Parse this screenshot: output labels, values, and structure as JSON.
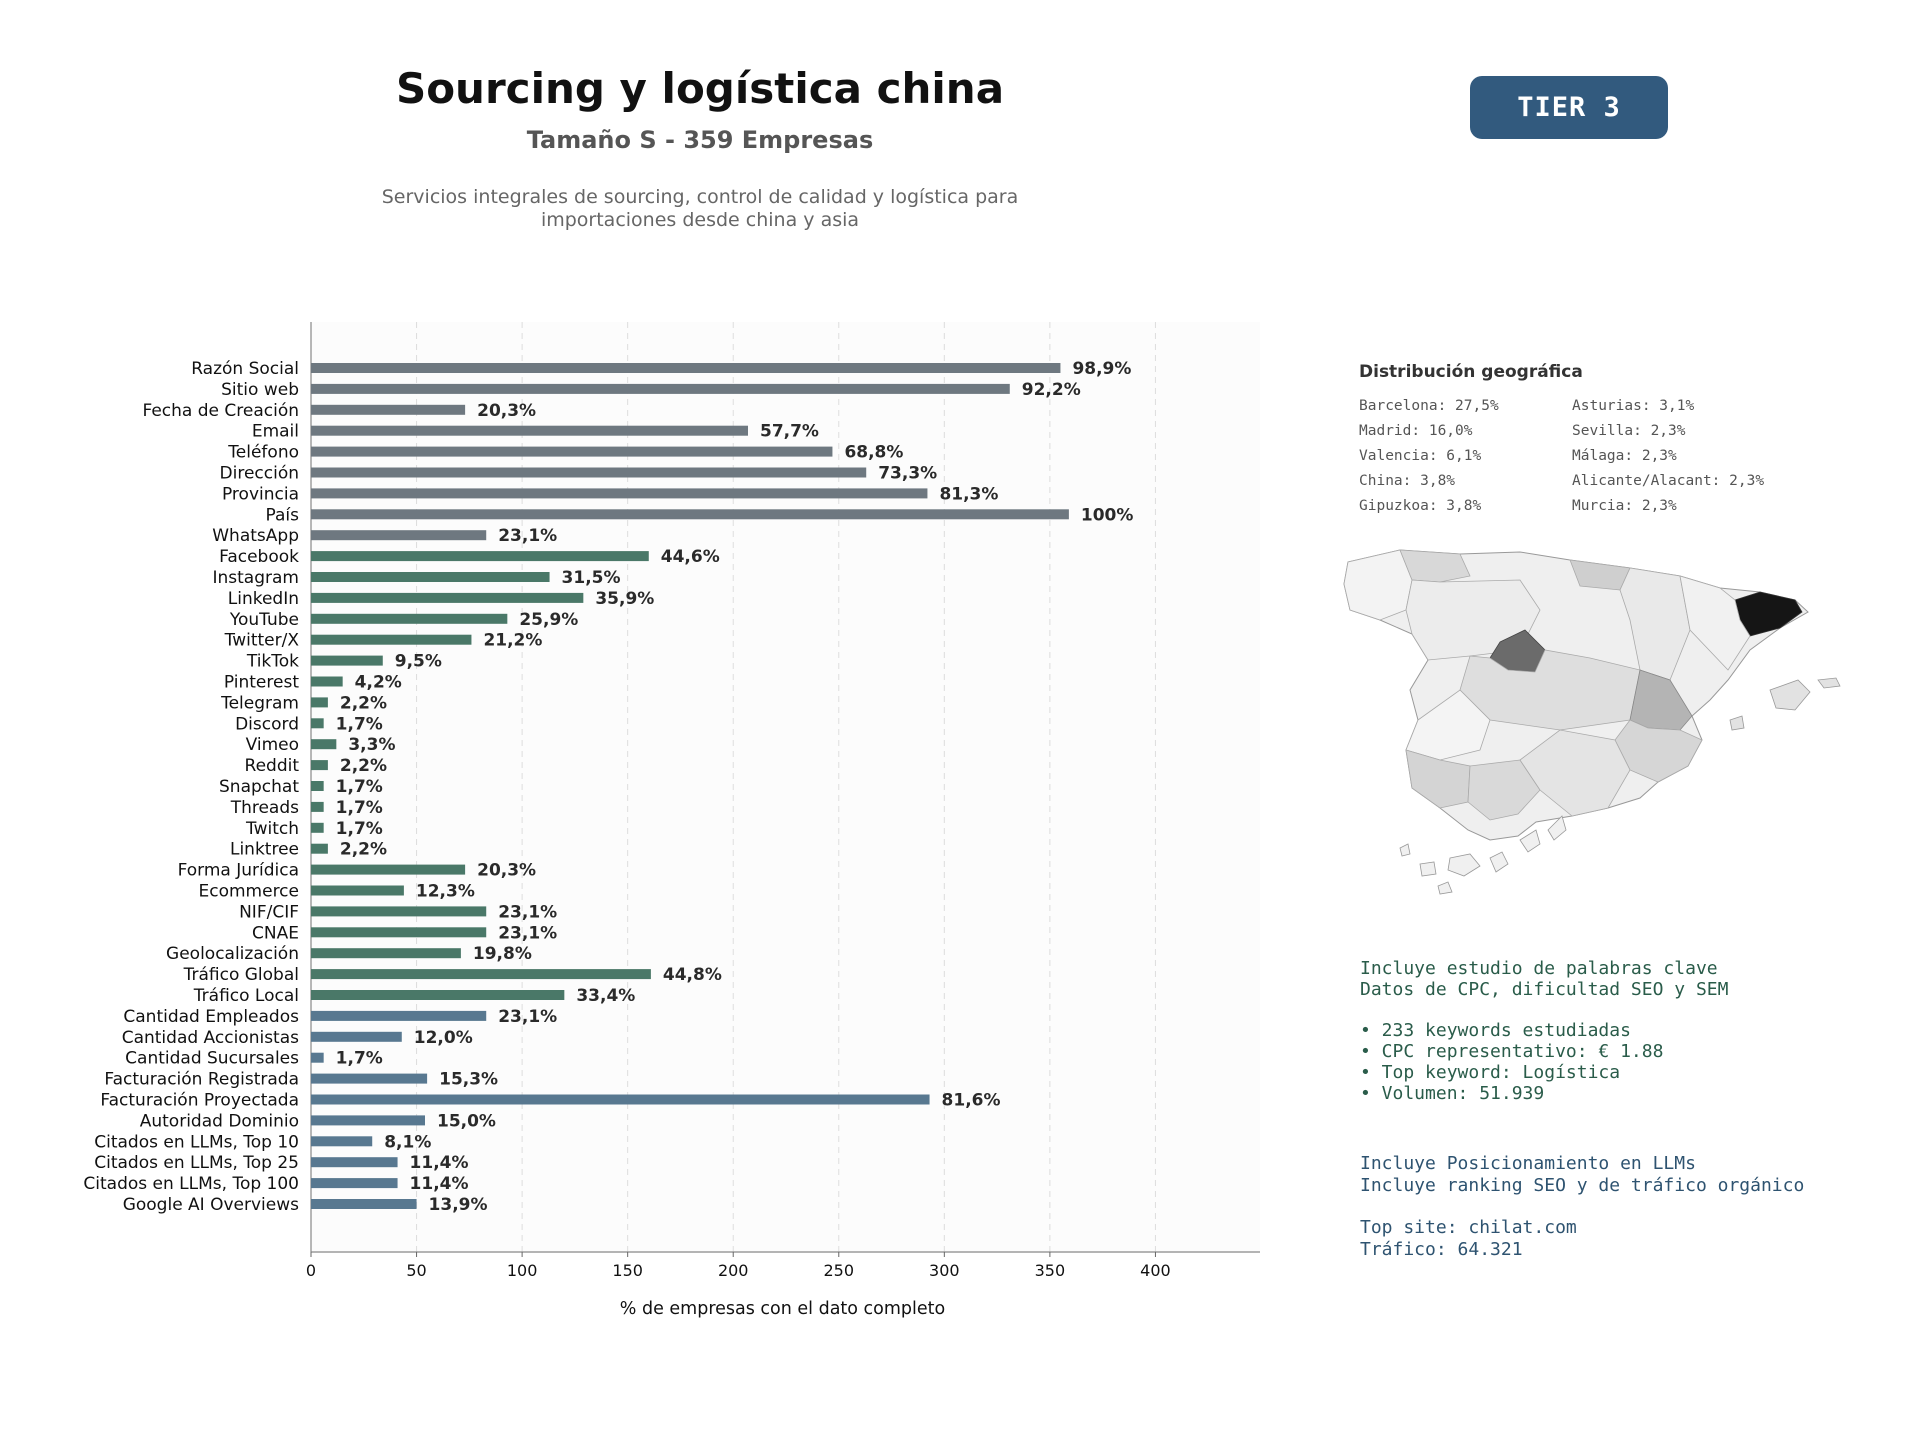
{
  "header": {
    "title": "Sourcing y logística china",
    "subtitle": "Tamaño S - 359 Empresas",
    "description_line1": "Servicios integrales de sourcing, control de calidad y logística para",
    "description_line2": "importaciones desde china y asia",
    "tier": "TIER 3"
  },
  "colors": {
    "basic": "#6e7880",
    "digital": "#4a7868",
    "financial": "#587890",
    "tier_bg": "#325a7e"
  },
  "chart_data": {
    "type": "bar",
    "orientation": "horizontal",
    "xlabel": "% de empresas con el dato completo",
    "xlim": [
      0,
      450
    ],
    "xticks": [
      0,
      50,
      100,
      150,
      200,
      250,
      300,
      350,
      400
    ],
    "grid": "vertical dashed",
    "categories": [
      "Razón Social",
      "Sitio web",
      "Fecha de Creación",
      "Email",
      "Teléfono",
      "Dirección",
      "Provincia",
      "País",
      "WhatsApp",
      "Facebook",
      "Instagram",
      "LinkedIn",
      "YouTube",
      "Twitter/X",
      "TikTok",
      "Pinterest",
      "Telegram",
      "Discord",
      "Vimeo",
      "Reddit",
      "Snapchat",
      "Threads",
      "Twitch",
      "Linktree",
      "Forma Jurídica",
      "Ecommerce",
      "NIF/CIF",
      "CNAE",
      "Geolocalización",
      "Tráfico Global",
      "Tráfico Local",
      "Cantidad Empleados",
      "Cantidad Accionistas",
      "Cantidad Sucursales",
      "Facturación Registrada",
      "Facturación Proyectada",
      "Autoridad Dominio",
      "Citados en LLMs, Top 10",
      "Citados en LLMs, Top 25",
      "Citados en LLMs, Top 100",
      "Google AI Overviews"
    ],
    "values": [
      355,
      331,
      73,
      207,
      247,
      263,
      292,
      359,
      83,
      160,
      113,
      129,
      93,
      76,
      34,
      15,
      8,
      6,
      12,
      8,
      6,
      6,
      6,
      8,
      73,
      44,
      83,
      83,
      71,
      161,
      120,
      83,
      43,
      6,
      55,
      293,
      54,
      29,
      41,
      41,
      50
    ],
    "labels": [
      "98,9%",
      "92,2%",
      "20,3%",
      "57,7%",
      "68,8%",
      "73,3%",
      "81,3%",
      "100%",
      "23,1%",
      "44,6%",
      "31,5%",
      "35,9%",
      "25,9%",
      "21,2%",
      "9,5%",
      "4,2%",
      "2,2%",
      "1,7%",
      "3,3%",
      "2,2%",
      "1,7%",
      "1,7%",
      "1,7%",
      "2,2%",
      "20,3%",
      "12,3%",
      "23,1%",
      "23,1%",
      "19,8%",
      "44,8%",
      "33,4%",
      "23,1%",
      "12,0%",
      "1,7%",
      "15,3%",
      "81,6%",
      "15,0%",
      "8,1%",
      "11,4%",
      "11,4%",
      "13,9%"
    ],
    "groups": [
      "basic",
      "basic",
      "basic",
      "basic",
      "basic",
      "basic",
      "basic",
      "basic",
      "basic",
      "digital",
      "digital",
      "digital",
      "digital",
      "digital",
      "digital",
      "digital",
      "digital",
      "digital",
      "digital",
      "digital",
      "digital",
      "digital",
      "digital",
      "digital",
      "digital",
      "digital",
      "digital",
      "digital",
      "digital",
      "digital",
      "digital",
      "financial",
      "financial",
      "financial",
      "financial",
      "financial",
      "financial",
      "financial",
      "financial",
      "financial",
      "financial"
    ]
  },
  "geo": {
    "title": "Distribución geográfica",
    "items": [
      "Barcelona: 27,5%",
      "Asturias: 3,1%",
      "Madrid: 16,0%",
      "Sevilla: 2,3%",
      "Valencia: 6,1%",
      "Málaga: 2,3%",
      "China: 3,8%",
      "Alicante/Alacant: 2,3%",
      "Gipuzkoa: 3,8%",
      "Murcia: 2,3%"
    ]
  },
  "keywords": {
    "line1": "Incluye estudio de palabras clave",
    "line2": "Datos de CPC, dificultad SEO y SEM",
    "bullet1": "• 233 keywords estudiadas",
    "bullet2": "• CPC representativo: € 1.88",
    "bullet3": "• Top keyword: Logística",
    "bullet4": "• Volumen: 51.939"
  },
  "llm": {
    "line1": "Incluye Posicionamiento en LLMs",
    "line2": "Incluye ranking SEO y de tráfico orgánico",
    "top_site": "Top site: chilat.com",
    "traffic": "Tráfico: 64.321"
  }
}
